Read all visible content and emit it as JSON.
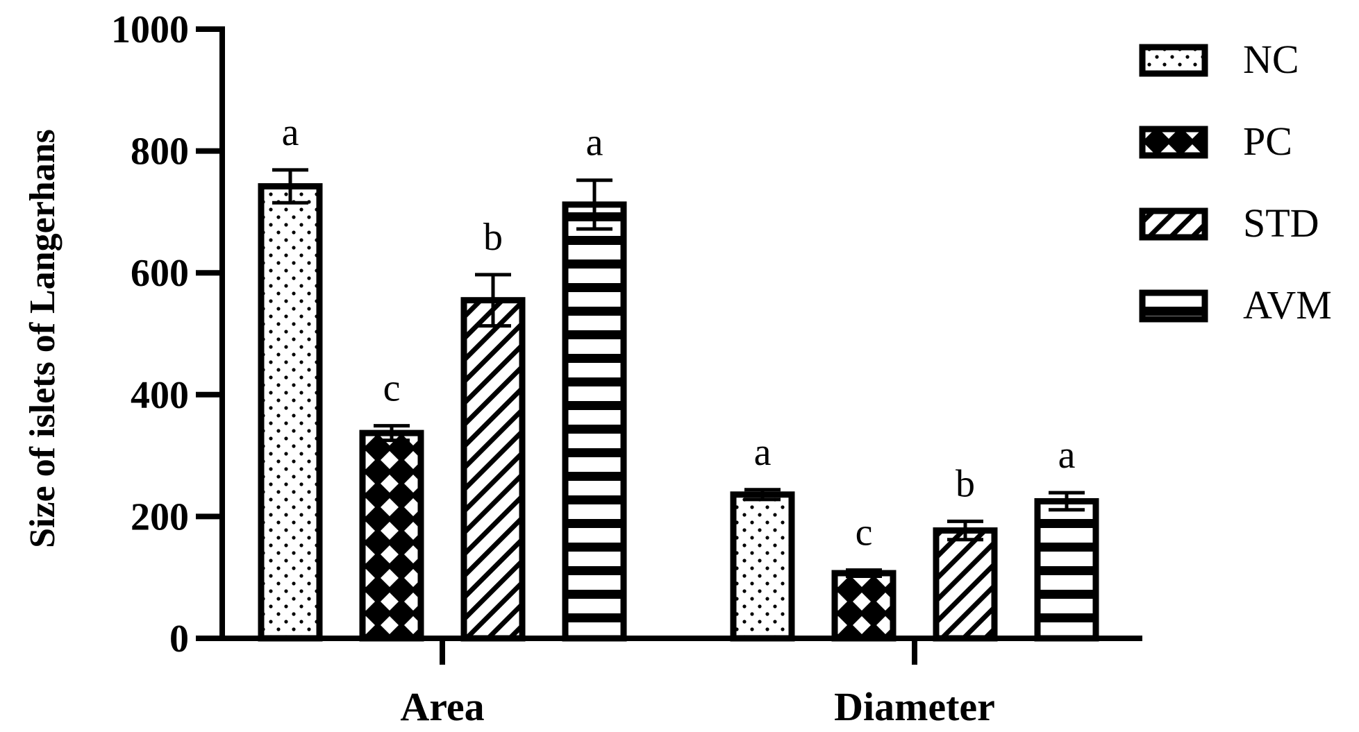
{
  "chart_data": {
    "type": "bar",
    "categories": [
      "Area",
      "Diameter"
    ],
    "series": [
      {
        "name": "NC",
        "pattern": "dots",
        "values": [
          742,
          236
        ],
        "errors": [
          27,
          8
        ],
        "letters": [
          "a",
          "a"
        ]
      },
      {
        "name": "PC",
        "pattern": "diamonds",
        "values": [
          337,
          107
        ],
        "errors": [
          12,
          5
        ],
        "letters": [
          "c",
          "c"
        ]
      },
      {
        "name": "STD",
        "pattern": "diagonal",
        "values": [
          555,
          177
        ],
        "errors": [
          42,
          15
        ],
        "letters": [
          "b",
          "b"
        ]
      },
      {
        "name": "AVM",
        "pattern": "horizontal",
        "values": [
          712,
          225
        ],
        "errors": [
          40,
          14
        ],
        "letters": [
          "a",
          "a"
        ]
      }
    ],
    "title": "",
    "xlabel": "",
    "ylabel": "Size of islets of Langerhans",
    "ylim": [
      0,
      1000
    ],
    "yticks": [
      "0",
      "200",
      "400",
      "600",
      "800",
      "1000"
    ],
    "grid": false,
    "legend_position": "top-right",
    "colors": {
      "bar_stroke": "#000000",
      "background": "#ffffff"
    }
  }
}
